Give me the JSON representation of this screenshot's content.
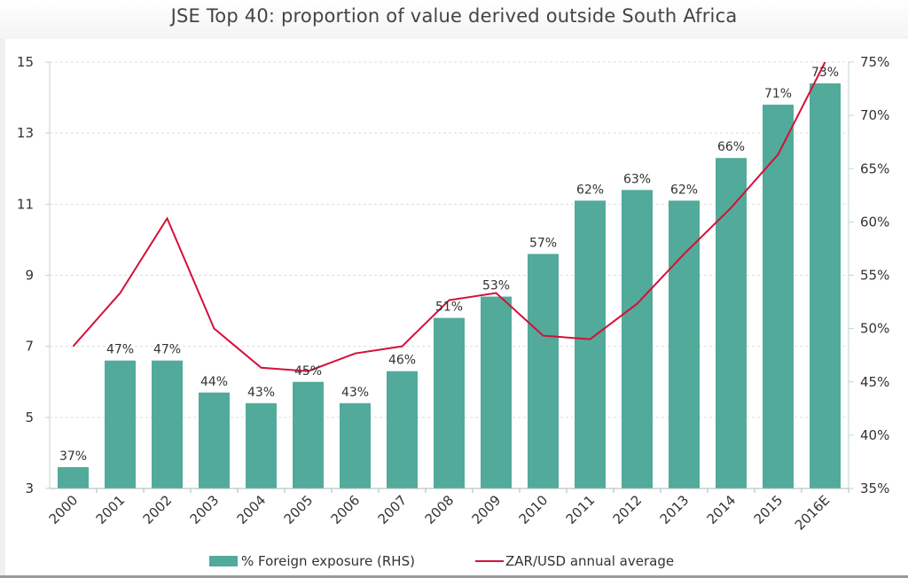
{
  "chart_data": {
    "type": "bar",
    "title": "JSE Top 40: proportion of value derived outside South Africa",
    "categories": [
      "2000",
      "2001",
      "2002",
      "2003",
      "2004",
      "2005",
      "2006",
      "2007",
      "2008",
      "2009",
      "2010",
      "2011",
      "2012",
      "2013",
      "2014",
      "2015",
      "2016E"
    ],
    "left_axis": {
      "ylim": [
        3,
        15
      ],
      "ticks": [
        "3",
        "5",
        "7",
        "9",
        "11",
        "13",
        "15"
      ]
    },
    "right_axis": {
      "ylim": [
        35,
        75
      ],
      "ticks": [
        "35%",
        "40%",
        "45%",
        "50%",
        "55%",
        "60%",
        "65%",
        "70%",
        "75%"
      ]
    },
    "grid": true,
    "legend_position": "bottom",
    "series": [
      {
        "name": "% Foreign exposure (RHS)",
        "type": "bar",
        "axis": "right",
        "color": "#52aa9a",
        "values": [
          37,
          47,
          47,
          44,
          43,
          45,
          43,
          46,
          51,
          53,
          57,
          62,
          63,
          62,
          66,
          71,
          73
        ],
        "labels": [
          "37%",
          "47%",
          "47%",
          "44%",
          "43%",
          "45%",
          "43%",
          "46%",
          "51%",
          "53%",
          "57%",
          "62%",
          "63%",
          "62%",
          "66%",
          "71%",
          "73%"
        ]
      },
      {
        "name": "ZAR/USD annual average",
        "type": "line",
        "axis": "left",
        "color": "#d4103a",
        "values": [
          7.0,
          8.5,
          10.6,
          7.5,
          6.4,
          6.3,
          6.8,
          7.0,
          8.3,
          8.5,
          7.3,
          7.2,
          8.2,
          9.6,
          10.9,
          12.4,
          15.0
        ]
      }
    ]
  }
}
